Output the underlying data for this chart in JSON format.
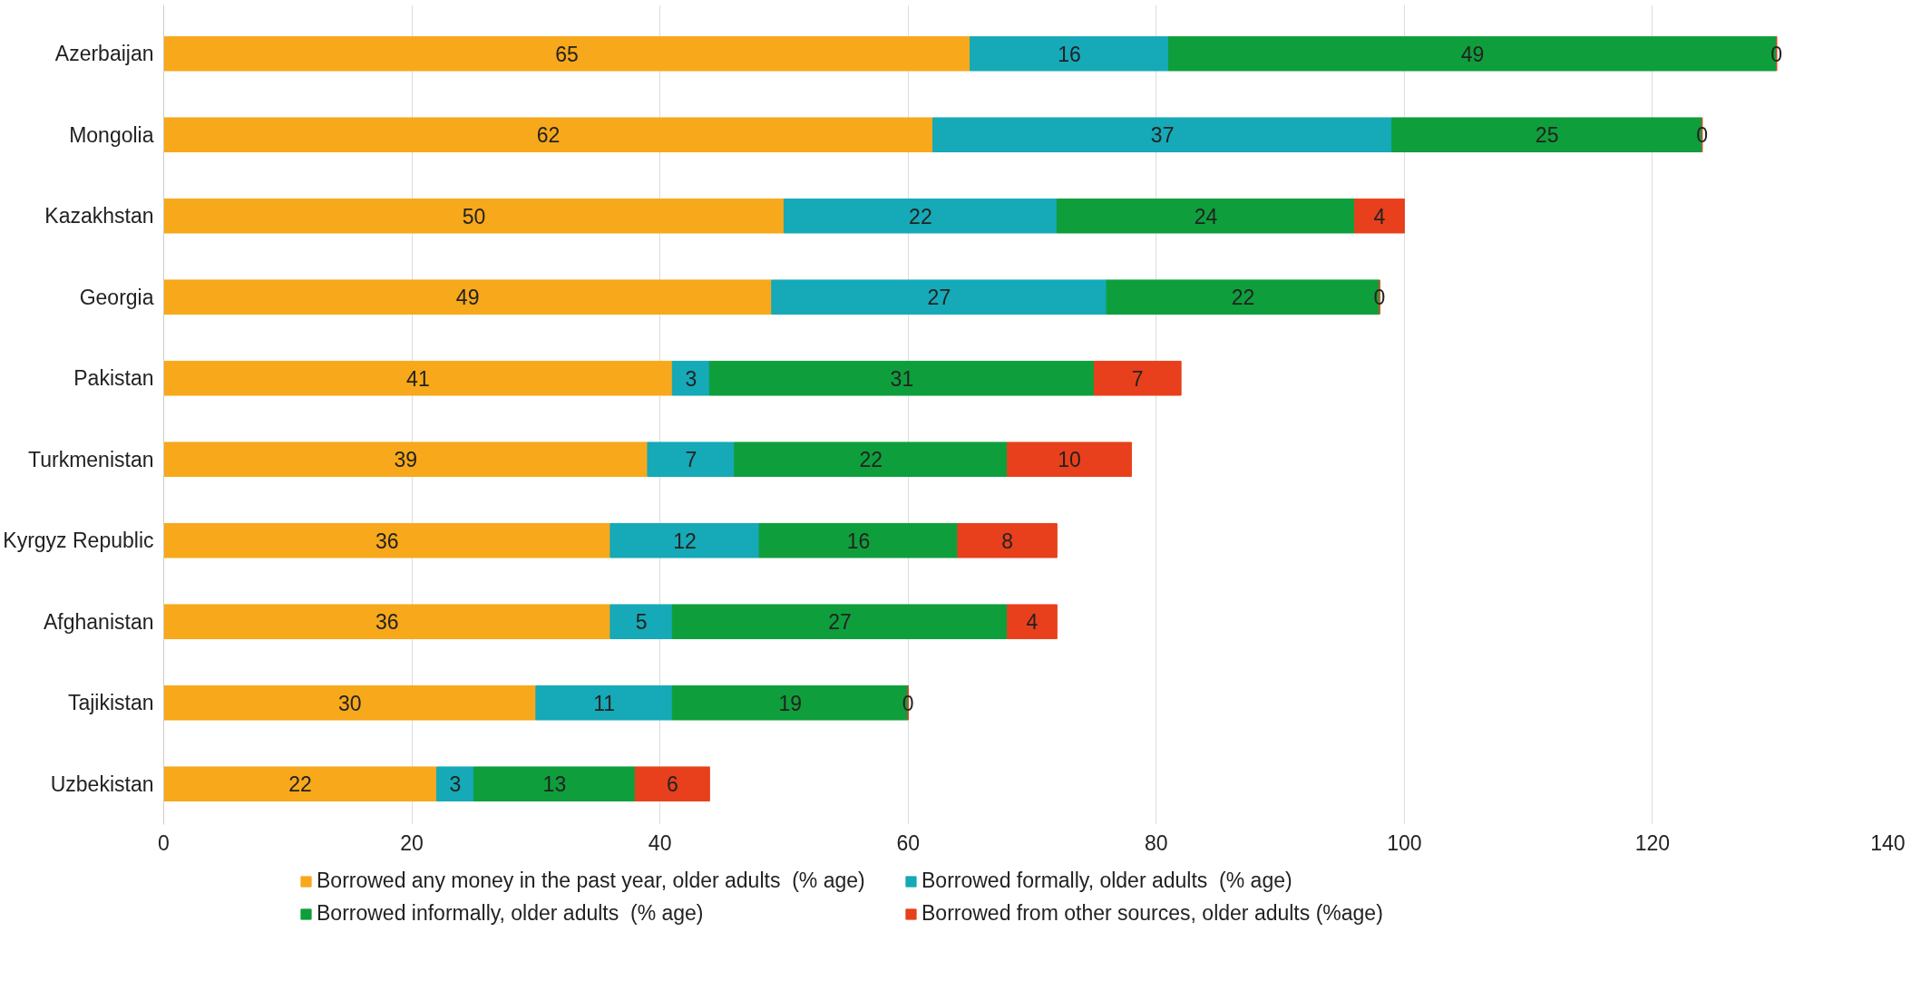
{
  "chart_data": {
    "type": "bar",
    "orientation": "horizontal",
    "stacked": true,
    "categories": [
      "Azerbaijan",
      "Mongolia",
      "Kazakhstan",
      "Georgia",
      "Pakistan",
      "Turkmenistan",
      "Kyrgyz Republic",
      "Afghanistan",
      "Tajikistan",
      "Uzbekistan"
    ],
    "series": [
      {
        "name": "Borrowed any money in the past year, older adults  (% age)",
        "color": "#f7a81b",
        "values": [
          65,
          62,
          50,
          49,
          41,
          39,
          36,
          36,
          30,
          22
        ]
      },
      {
        "name": "Borrowed formally, older adults  (% age)",
        "color": "#16a9b7",
        "values": [
          16,
          37,
          22,
          27,
          3,
          7,
          12,
          5,
          11,
          3
        ]
      },
      {
        "name": "Borrowed informally, older adults  (% age)",
        "color": "#0f9e3c",
        "values": [
          49,
          25,
          24,
          22,
          31,
          22,
          16,
          27,
          19,
          13
        ]
      },
      {
        "name": "Borrowed from other sources, older adults (%age)",
        "color": "#e8401c",
        "values": [
          0,
          0,
          4,
          0,
          7,
          10,
          8,
          4,
          0,
          6
        ]
      }
    ],
    "xlim": [
      0,
      140
    ],
    "xticks": [
      0,
      20,
      40,
      60,
      80,
      100,
      120,
      140
    ],
    "grid": "x",
    "legend": "bottom",
    "data_labels": true
  }
}
